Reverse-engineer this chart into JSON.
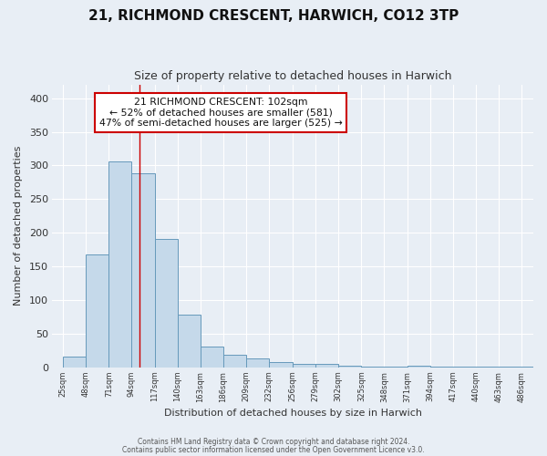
{
  "title": "21, RICHMOND CRESCENT, HARWICH, CO12 3TP",
  "subtitle": "Size of property relative to detached houses in Harwich",
  "xlabel": "Distribution of detached houses by size in Harwich",
  "ylabel": "Number of detached properties",
  "bin_edges": [
    25,
    48,
    71,
    94,
    117,
    140,
    163,
    186,
    209,
    232,
    256,
    279,
    302,
    325,
    348,
    371,
    394,
    417,
    440,
    463,
    486
  ],
  "bin_counts": [
    16,
    168,
    306,
    289,
    191,
    78,
    31,
    19,
    13,
    7,
    5,
    5,
    2,
    1,
    1,
    2,
    1,
    1,
    1,
    1,
    1
  ],
  "bar_facecolor": "#c5d9ea",
  "bar_edgecolor": "#6699bb",
  "vline_x": 102,
  "vline_color": "#cc0000",
  "annotation_title": "21 RICHMOND CRESCENT: 102sqm",
  "annotation_line1": "← 52% of detached houses are smaller (581)",
  "annotation_line2": "47% of semi-detached houses are larger (525) →",
  "annotation_box_edgecolor": "#cc0000",
  "annotation_box_facecolor": "#ffffff",
  "ylim": [
    0,
    420
  ],
  "xlim_left": 14,
  "xlim_right": 498,
  "yticks": [
    0,
    50,
    100,
    150,
    200,
    250,
    300,
    350,
    400
  ],
  "background_color": "#e8eef5",
  "plot_bg_color": "#e8eef5",
  "grid_color": "#ffffff",
  "footer1": "Contains HM Land Registry data © Crown copyright and database right 2024.",
  "footer2": "Contains public sector information licensed under the Open Government Licence v3.0."
}
